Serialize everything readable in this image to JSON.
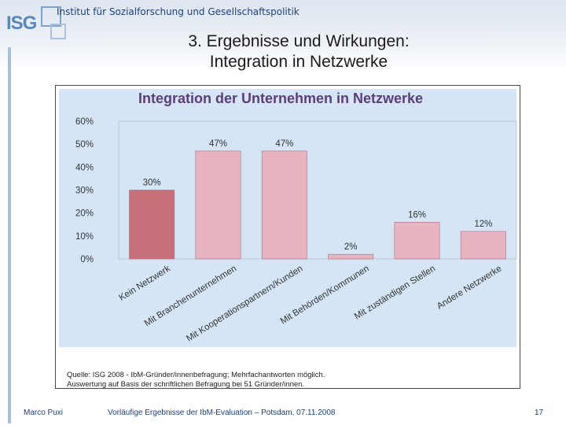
{
  "header": {
    "logo": "ISG",
    "institute": "Institut für Sozialforschung und Gesellschaftspolitik",
    "title_line1": "3. Ergebnisse und Wirkungen:",
    "title_line2": "Integration in Netzwerke"
  },
  "chart_data": {
    "type": "bar",
    "title": "Integration der Unternehmen in Netzwerke",
    "categories": [
      "Kein Netzwerk",
      "Mit Branchenunternehmen",
      "Mit Kooperationspartnern/Kunden",
      "Mit Behörden/Kommunen",
      "Mit zuständigen Stellen",
      "Andere Netzwerke"
    ],
    "values": [
      30,
      47,
      47,
      2,
      16,
      12
    ],
    "value_labels": [
      "30%",
      "47%",
      "47%",
      "2%",
      "16%",
      "12%"
    ],
    "ylim": [
      0,
      60
    ],
    "yticks": [
      0,
      10,
      20,
      30,
      40,
      50,
      60
    ],
    "ytick_labels": [
      "0%",
      "10%",
      "20%",
      "30%",
      "40%",
      "50%",
      "60%"
    ],
    "grid": false,
    "xlabel": "",
    "ylabel": "",
    "colors": {
      "highlight_bar": "#c8707a",
      "bar": "#e8b4bf",
      "plot_background": "#d6e5f5",
      "title": "#5c3d78",
      "axis_text": "#333333"
    },
    "source_line1": "Quelle: ISG 2008 - IbM-Gründer/innenbefragung; Mehrfachantworten möglich.",
    "source_line2": "Auswertung auf Basis der schriftlichen Befragung bei 51 Gründer/innen."
  },
  "footer": {
    "author": "Marco Puxi",
    "description": "Vorläufige Ergebnisse der IbM-Evaluation – Potsdam, 07.11.2008",
    "page": "17"
  }
}
